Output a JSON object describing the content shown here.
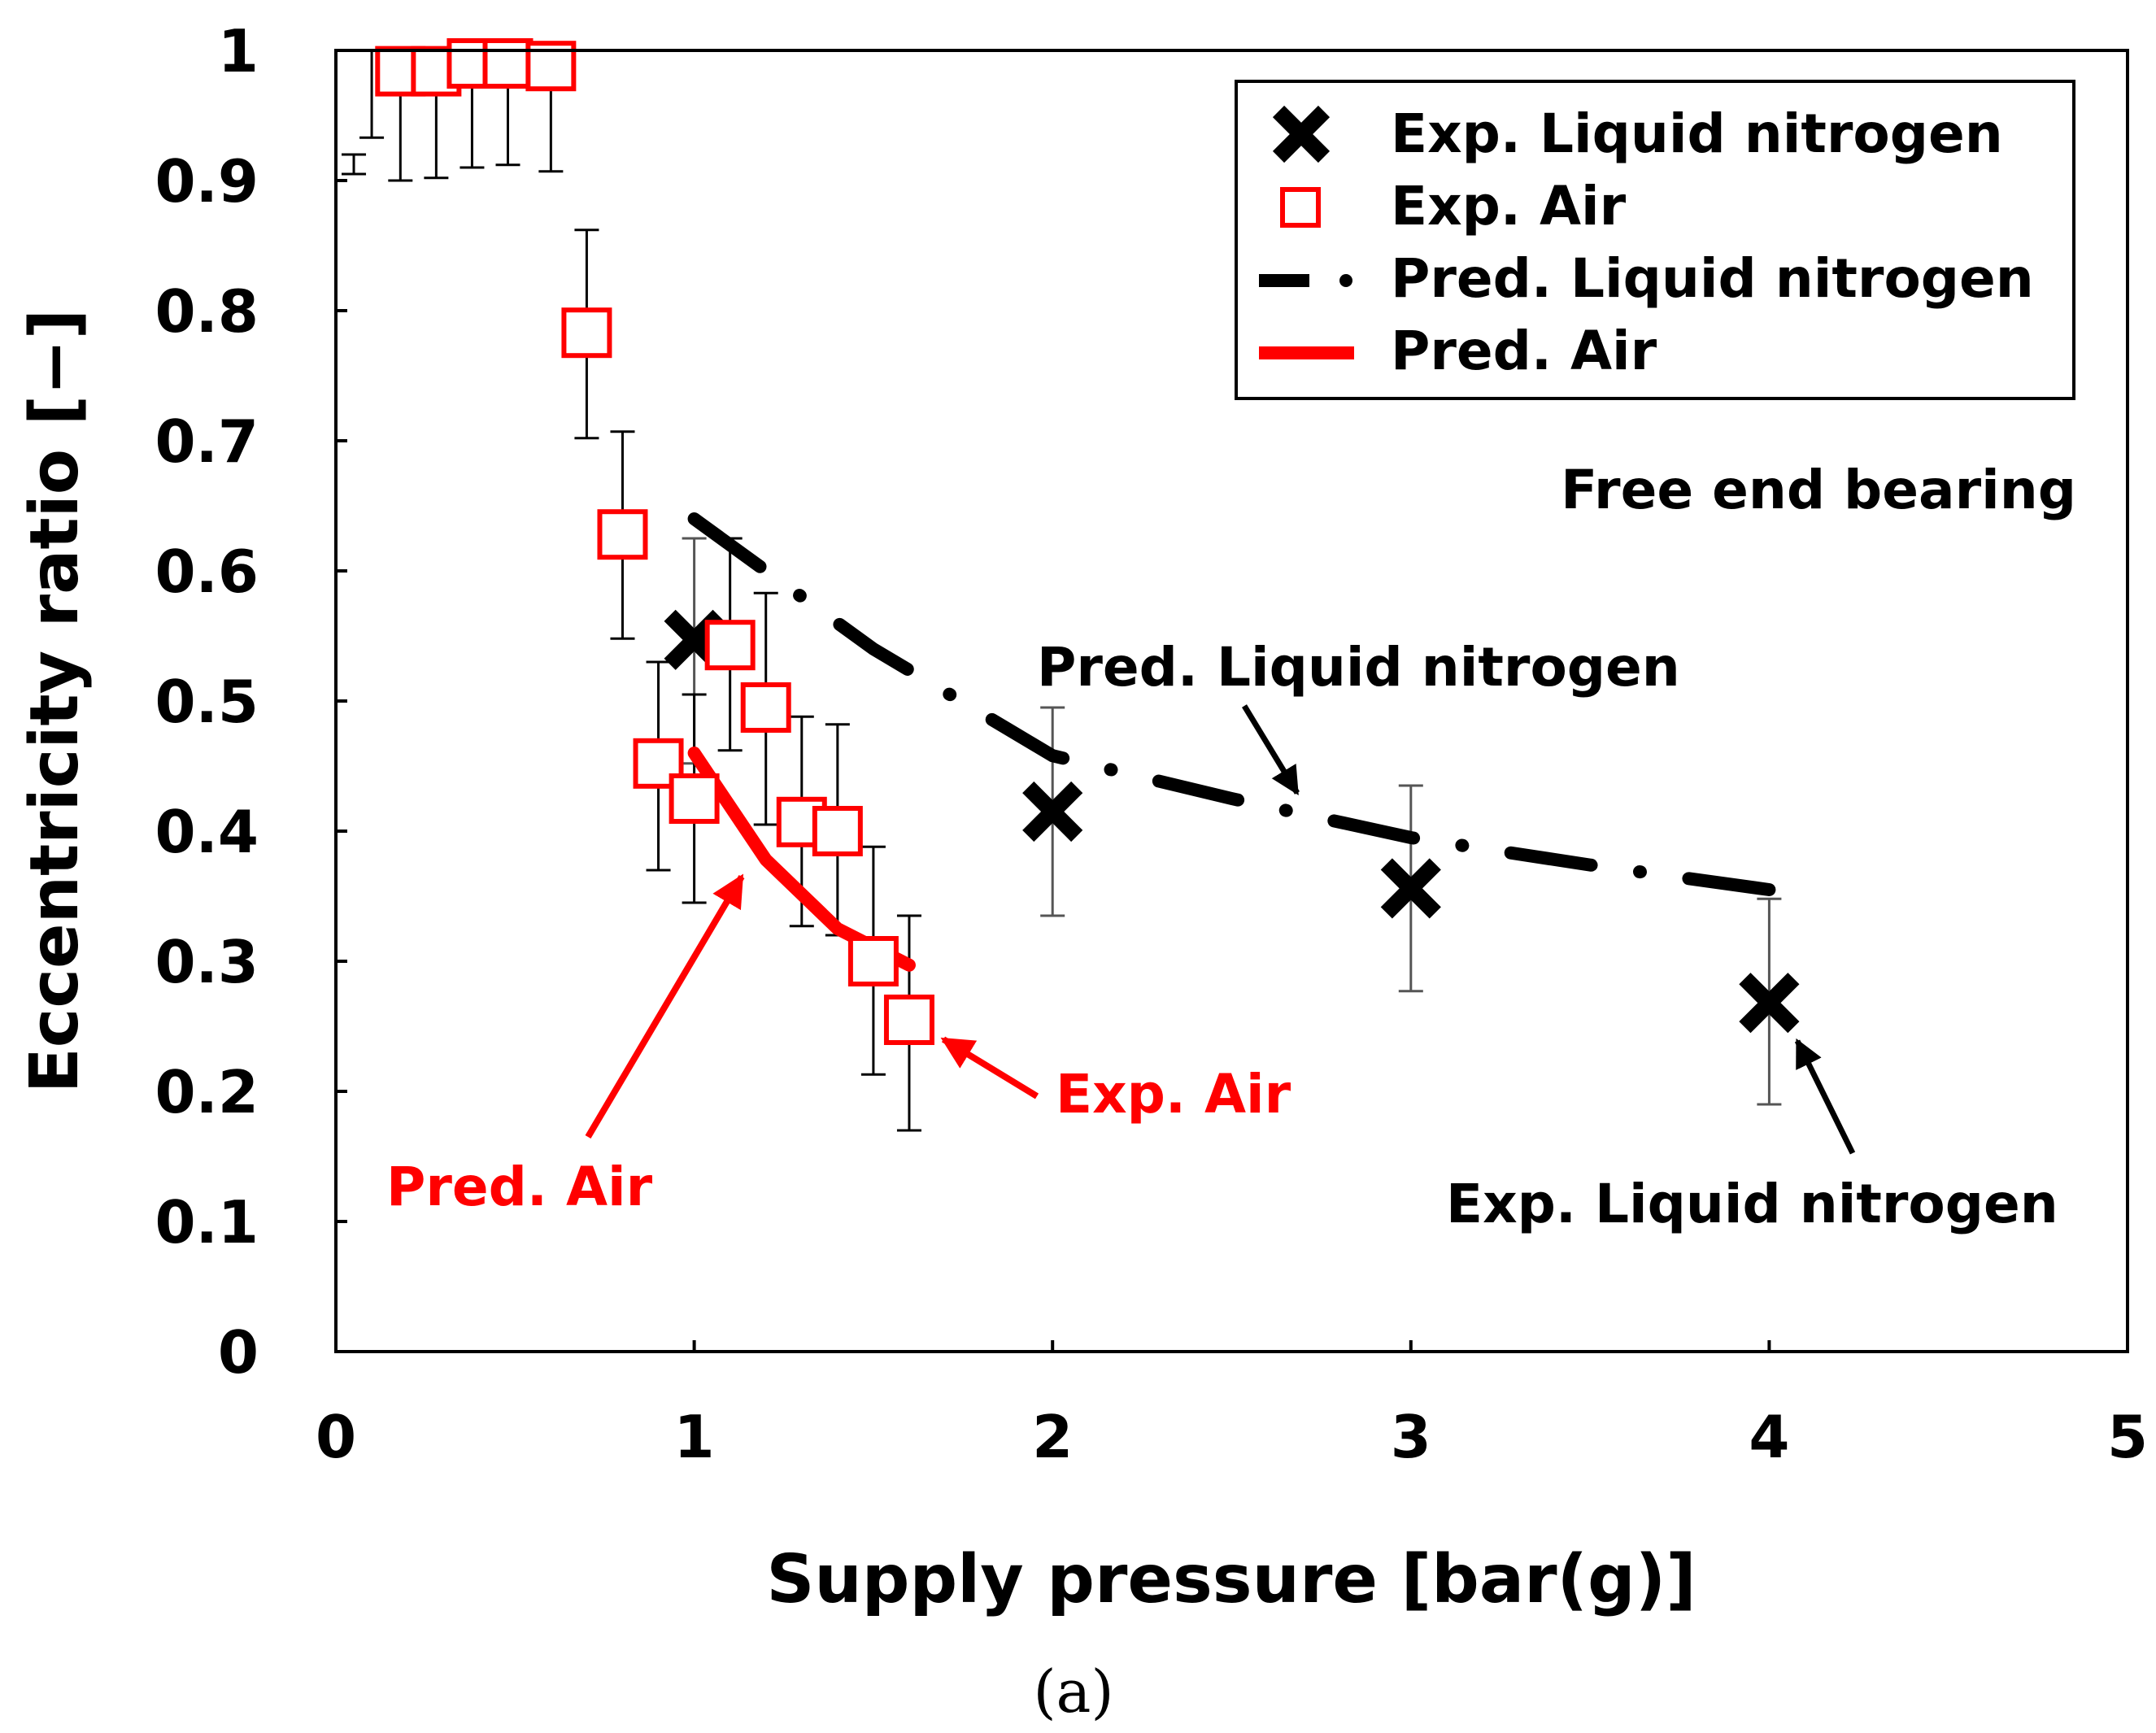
{
  "chart_data": {
    "type": "scatter",
    "title": "",
    "xlabel": "Supply pressure [bar(g)]",
    "ylabel": "Eccentricity ratio [−]",
    "xlim": [
      0,
      5
    ],
    "ylim": [
      0,
      1
    ],
    "x_ticks": [
      "0",
      "1",
      "2",
      "3",
      "4",
      "5"
    ],
    "y_ticks": [
      "0",
      "0.1",
      "0.2",
      "0.3",
      "0.4",
      "0.5",
      "0.6",
      "0.7",
      "0.8",
      "0.9",
      "1"
    ],
    "grid": false,
    "legend_position": "top-right",
    "caption": "(a)",
    "series": [
      {
        "name": "Exp. Liquid nitrogen",
        "kind": "marker-x",
        "color": "#000000",
        "x": [
          1,
          2,
          3,
          4
        ],
        "y": [
          0.547,
          0.415,
          0.356,
          0.268
        ],
        "err_low": [
          0.452,
          0.335,
          0.277,
          0.19
        ],
        "err_high": [
          0.625,
          0.495,
          0.435,
          0.348
        ]
      },
      {
        "name": "Exp. Air",
        "kind": "marker-square",
        "color": "#ff0000",
        "x": [
          0.18,
          0.28,
          0.38,
          0.48,
          0.6,
          0.7,
          0.8,
          0.9,
          1.0,
          1.1,
          1.2,
          1.3,
          1.4,
          1.5,
          1.6
        ],
        "y": [
          0.984,
          0.984,
          0.99,
          0.99,
          0.988,
          0.783,
          0.628,
          0.452,
          0.425,
          0.543,
          0.495,
          0.407,
          0.4,
          0.3,
          0.255
        ],
        "err_low": [
          0.9,
          0.902,
          0.91,
          0.912,
          0.907,
          0.702,
          0.548,
          0.37,
          0.345,
          0.462,
          0.405,
          0.327,
          0.32,
          0.213,
          0.17
        ],
        "err_high": [
          1.0,
          1.0,
          1.0,
          1.0,
          1.0,
          0.862,
          0.707,
          0.53,
          0.505,
          0.625,
          0.583,
          0.488,
          0.482,
          0.388,
          0.335
        ]
      },
      {
        "name": "Pred. Liquid nitrogen",
        "kind": "line-dashdot",
        "color": "#000000",
        "x": [
          1.0,
          1.5,
          2.0,
          2.5,
          3.0,
          3.5,
          4.0
        ],
        "y": [
          0.64,
          0.54,
          0.458,
          0.425,
          0.395,
          0.374,
          0.355
        ]
      },
      {
        "name": "Pred. Air",
        "kind": "line-solid",
        "color": "#ff0000",
        "x": [
          1.0,
          1.2,
          1.4,
          1.6
        ],
        "y": [
          0.46,
          0.378,
          0.325,
          0.297
        ]
      }
    ],
    "extra_error_bars": [
      {
        "x": 0.1,
        "low": 0.933,
        "high": 1.0
      },
      {
        "x": 0.05,
        "low": 0.905,
        "high": 0.92
      }
    ],
    "annotations": [
      {
        "text": "Free end bearing",
        "color": "#000000"
      },
      {
        "text": "Pred. Liquid nitrogen",
        "color": "#000000",
        "point_to": [
          2.7,
          0.43
        ]
      },
      {
        "text": "Exp. Liquid nitrogen",
        "color": "#000000",
        "point_to": [
          4.08,
          0.24
        ]
      },
      {
        "text": "Exp. Air",
        "color": "#ff0000",
        "point_to": [
          1.7,
          0.26
        ]
      },
      {
        "text": "Pred. Air",
        "color": "#ff0000",
        "point_to": [
          1.15,
          0.34
        ]
      }
    ]
  }
}
